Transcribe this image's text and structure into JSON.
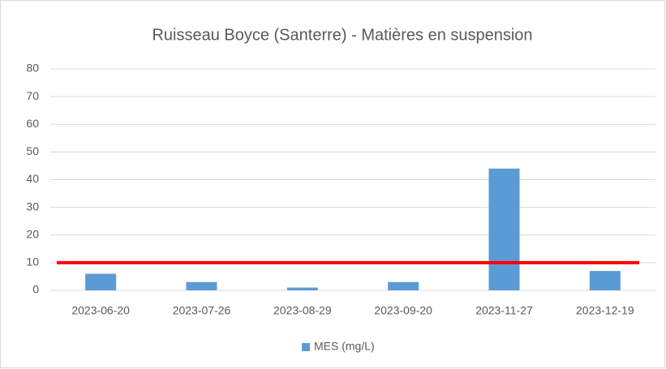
{
  "chart_data": {
    "type": "bar",
    "title": "Ruisseau Boyce (Santerre) - Matières en suspension",
    "categories": [
      "2023-06-20",
      "2023-07-26",
      "2023-08-29",
      "2023-09-20",
      "2023-11-27",
      "2023-12-19"
    ],
    "series": [
      {
        "name": "MES (mg/L)",
        "color": "#5b9bd5",
        "values": [
          6,
          3,
          1,
          3,
          44,
          7
        ]
      }
    ],
    "threshold": {
      "value": 10,
      "color": "#ff0000"
    },
    "ylim": [
      0,
      80
    ],
    "yticks": [
      0,
      10,
      20,
      30,
      40,
      50,
      60,
      70,
      80
    ],
    "grid": true,
    "legend": "bottom"
  }
}
